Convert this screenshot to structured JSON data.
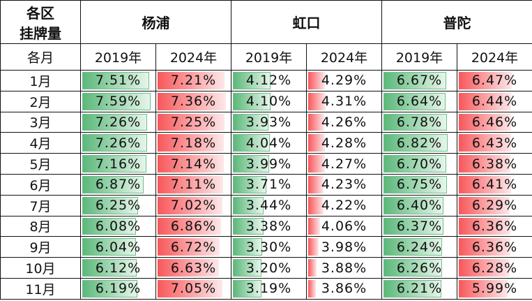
{
  "corner": {
    "line1": "各区",
    "line2": "挂牌量"
  },
  "month_header": "各月",
  "districts": [
    "杨浦",
    "虹口",
    "普陀"
  ],
  "years": [
    "2019年",
    "2024年"
  ],
  "months": [
    "1月",
    "2月",
    "3月",
    "4月",
    "5月",
    "6月",
    "7月",
    "8月",
    "9月",
    "10月",
    "11月"
  ],
  "colors": {
    "bar_2019": "#5cb87a",
    "bar_2024": "#f8575a"
  },
  "columns": [
    {
      "district": "杨浦",
      "year": "2019年",
      "values": [
        "7.51%",
        "7.59%",
        "7.26%",
        "7.26%",
        "7.16%",
        "6.87%",
        "6.25%",
        "6.08%",
        "6.04%",
        "6.12%",
        "6.19%"
      ]
    },
    {
      "district": "杨浦",
      "year": "2024年",
      "values": [
        "7.21%",
        "7.36%",
        "7.25%",
        "7.18%",
        "7.14%",
        "7.11%",
        "7.02%",
        "6.86%",
        "6.72%",
        "6.63%",
        "7.05%"
      ]
    },
    {
      "district": "虹口",
      "year": "2019年",
      "values": [
        "4.12%",
        "4.10%",
        "3.93%",
        "4.04%",
        "3.99%",
        "3.71%",
        "3.44%",
        "3.38%",
        "3.30%",
        "3.20%",
        "3.19%"
      ]
    },
    {
      "district": "虹口",
      "year": "2024年",
      "values": [
        "4.29%",
        "4.31%",
        "4.26%",
        "4.28%",
        "4.27%",
        "4.23%",
        "4.22%",
        "4.06%",
        "3.98%",
        "3.88%",
        "3.86%"
      ]
    },
    {
      "district": "普陀",
      "year": "2019年",
      "values": [
        "6.67%",
        "6.64%",
        "6.78%",
        "6.82%",
        "6.70%",
        "6.75%",
        "6.40%",
        "6.37%",
        "6.24%",
        "6.26%",
        "6.21%"
      ]
    },
    {
      "district": "普陀",
      "year": "2024年",
      "values": [
        "6.47%",
        "6.44%",
        "6.46%",
        "6.43%",
        "6.38%",
        "6.41%",
        "6.29%",
        "6.36%",
        "6.36%",
        "6.28%",
        "5.99%"
      ]
    }
  ],
  "bar_scale": [
    [
      0,
      8.0
    ],
    [
      0,
      7.75
    ],
    [
      0,
      7.6
    ],
    [
      3.38,
      6.83
    ],
    [
      0,
      7.6
    ],
    [
      0,
      8.7
    ]
  ]
}
